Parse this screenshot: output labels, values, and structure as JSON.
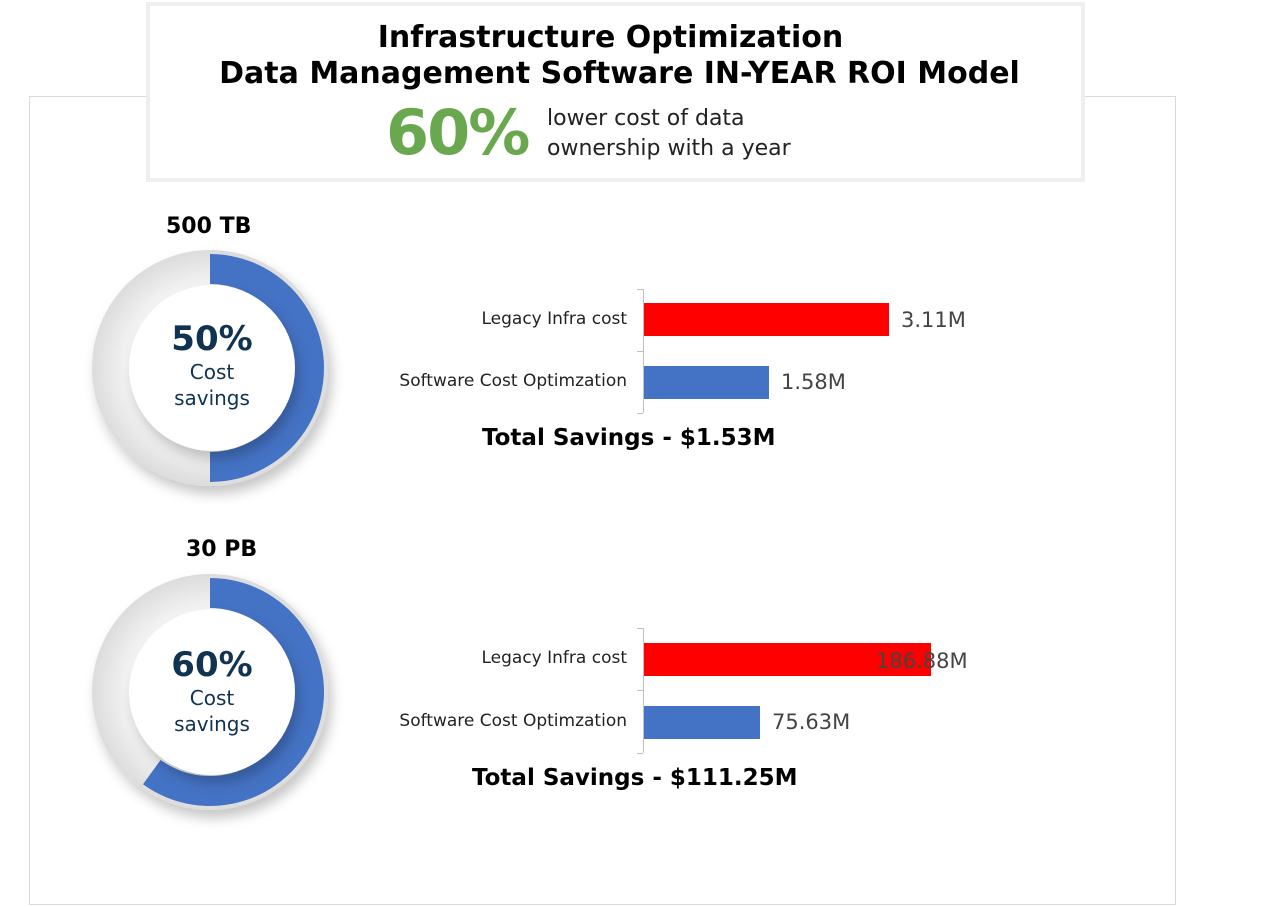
{
  "header": {
    "title_line1": "Infrastructure Optimization",
    "title_line2": "Data Management Software IN-YEAR ROI Model",
    "headline_percent": "60%",
    "headline_text_line1": "lower cost of data",
    "headline_text_line2": "ownership with a year"
  },
  "colors": {
    "legacy_bar": "#ff0000",
    "software_bar": "#4472c4",
    "donut_fill": "#4472c4",
    "donut_track": "#e6e6e6",
    "headline": "#6aa84f",
    "donut_text": "#0f3350"
  },
  "chart_data": [
    {
      "type": "bar",
      "orientation": "horizontal",
      "size_label": "500 TB",
      "donut": {
        "percent": 50,
        "percent_label": "50%",
        "sub_line1": "Cost",
        "sub_line2": "savings"
      },
      "categories": [
        "Legacy Infra cost",
        "Software Cost Optimzation"
      ],
      "values": [
        3.11,
        1.58
      ],
      "value_labels": [
        "3.11M",
        "1.58M"
      ],
      "unit": "M",
      "xlim": [
        0,
        3.5
      ],
      "total_label": "Total Savings - $1.53M"
    },
    {
      "type": "bar",
      "orientation": "horizontal",
      "size_label": "30 PB",
      "donut": {
        "percent": 60,
        "percent_label": "60%",
        "sub_line1": "Cost",
        "sub_line2": "savings"
      },
      "categories": [
        "Legacy Infra cost",
        "Software Cost Optimzation"
      ],
      "values": [
        186.88,
        75.63
      ],
      "value_labels": [
        "186.88M",
        "75.63M"
      ],
      "unit": "M",
      "xlim": [
        0,
        186.88
      ],
      "total_label": "Total Savings - $111.25M"
    }
  ]
}
